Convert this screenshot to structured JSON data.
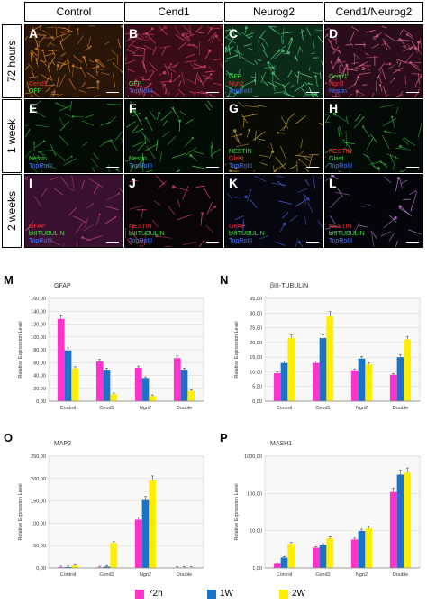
{
  "figure": {
    "columns": [
      "Control",
      "Cend1",
      "Neurog2",
      "Cend1/Neurog2"
    ],
    "rows": [
      "72 hours",
      "1 week",
      "2 weeks"
    ],
    "panels": [
      {
        "letter": "A",
        "bg": "#2a1608",
        "fiber": "#d98a2a",
        "labels": [
          {
            "text": "Cend1",
            "color": "#ff3030"
          },
          {
            "text": "GFP",
            "color": "#40e040"
          }
        ]
      },
      {
        "letter": "B",
        "bg": "#3a0c18",
        "fiber": "#e04a6a",
        "labels": [
          {
            "text": "GFP",
            "color": "#40e040"
          },
          {
            "text": "TopRoIII",
            "color": "#4a7aff"
          }
        ]
      },
      {
        "letter": "C",
        "bg": "#0c2a18",
        "fiber": "#5ad888",
        "labels": [
          {
            "text": "GFP",
            "color": "#40e040"
          },
          {
            "text": "Ngn2",
            "color": "#ff3030"
          },
          {
            "text": "TopRoIII",
            "color": "#4a7aff"
          }
        ]
      },
      {
        "letter": "D",
        "bg": "#2a0c1a",
        "fiber": "#e06a90",
        "labels": [
          {
            "text": "Cend1",
            "color": "#40e040"
          },
          {
            "text": "Ngn2",
            "color": "#ff3030"
          },
          {
            "text": "Nestin",
            "color": "#4a7aff"
          }
        ]
      },
      {
        "letter": "E",
        "bg": "#040a04",
        "fiber": "#2aa83a",
        "labels": [
          {
            "text": "Nestin",
            "color": "#40e040"
          },
          {
            "text": "TopRoIII",
            "color": "#4a7aff"
          }
        ]
      },
      {
        "letter": "F",
        "bg": "#040c06",
        "fiber": "#3ac24a",
        "labels": [
          {
            "text": "Nestin",
            "color": "#40e040"
          },
          {
            "text": "TopRoIII",
            "color": "#4a7aff"
          }
        ]
      },
      {
        "letter": "G",
        "bg": "#0a0a04",
        "fiber": "#c8a83a",
        "labels": [
          {
            "text": "NESTIN",
            "color": "#40e040"
          },
          {
            "text": "Glast",
            "color": "#ff3030"
          },
          {
            "text": "TopRoIII",
            "color": "#4a7aff"
          }
        ]
      },
      {
        "letter": "H",
        "bg": "#040a06",
        "fiber": "#3ab84a",
        "labels": [
          {
            "text": "NESTIN",
            "color": "#ff3030"
          },
          {
            "text": "Glast",
            "color": "#40e040"
          },
          {
            "text": "TopRoIII",
            "color": "#4a7aff"
          }
        ]
      },
      {
        "letter": "I",
        "bg": "#3a1030",
        "fiber": "#c04a8a",
        "labels": [
          {
            "text": "GFAP",
            "color": "#ff3030"
          },
          {
            "text": "bIIITUBULIN",
            "color": "#40e040"
          },
          {
            "text": "TopRoIII",
            "color": "#4a7aff"
          }
        ]
      },
      {
        "letter": "J",
        "bg": "#080408",
        "fiber": "#d84a6a",
        "labels": [
          {
            "text": "NESTIN",
            "color": "#ff3030"
          },
          {
            "text": "bIIITUBULIN",
            "color": "#40e040"
          },
          {
            "text": "TopRoIII",
            "color": "#4a7aff"
          }
        ]
      },
      {
        "letter": "K",
        "bg": "#060610",
        "fiber": "#4a6ad8",
        "labels": [
          {
            "text": "GFAP",
            "color": "#ff3030"
          },
          {
            "text": "bIIITUBULIN",
            "color": "#40e040"
          },
          {
            "text": "TopRoIII",
            "color": "#4a7aff"
          }
        ]
      },
      {
        "letter": "L",
        "bg": "#04040a",
        "fiber": "#c88ad8",
        "labels": [
          {
            "text": "NESTIN",
            "color": "#ff3030"
          },
          {
            "text": "bIIITUBULIN",
            "color": "#40e040"
          },
          {
            "text": "TopRoIII",
            "color": "#4a7aff"
          }
        ]
      }
    ]
  },
  "legend": [
    {
      "label": "72h",
      "color": "#ff33cc"
    },
    {
      "label": "1W",
      "color": "#1a73c8"
    },
    {
      "label": "2W",
      "color": "#ffee00"
    }
  ],
  "chart_data": [
    {
      "letter": "M",
      "type": "bar",
      "title": "GFAP",
      "ylabel": "Relative Expression Level",
      "scale": "linear",
      "ylim": [
        0,
        160
      ],
      "yticks": [
        "0,00",
        "20,00",
        "40,00",
        "60,00",
        "80,00",
        "100,00",
        "120,00",
        "140,00",
        "160,00"
      ],
      "categories": [
        "Control",
        "Cend1",
        "Ngn2",
        "Double"
      ],
      "series": [
        {
          "name": "72h",
          "values": [
            128,
            62,
            52,
            67
          ]
        },
        {
          "name": "1W",
          "values": [
            79,
            49,
            36,
            49
          ]
        },
        {
          "name": "2W",
          "values": [
            51,
            11,
            8,
            16
          ]
        }
      ]
    },
    {
      "letter": "N",
      "type": "bar",
      "title": "βIII-TUBULIN",
      "ylabel": "Relative Expression Level",
      "scale": "linear",
      "ylim": [
        0,
        35
      ],
      "yticks": [
        "0,00",
        "5,00",
        "10,00",
        "15,00",
        "20,00",
        "25,00",
        "30,00",
        "35,00"
      ],
      "categories": [
        "Control",
        "Cend1",
        "Ngn2",
        "Double"
      ],
      "series": [
        {
          "name": "72h",
          "values": [
            9.5,
            13,
            10.5,
            9
          ]
        },
        {
          "name": "1W",
          "values": [
            13,
            21.5,
            14.5,
            15
          ]
        },
        {
          "name": "2W",
          "values": [
            21.5,
            29,
            12.5,
            21
          ]
        }
      ]
    },
    {
      "letter": "O",
      "type": "bar",
      "title": "MAP2",
      "ylabel": "Relative Expression Level",
      "scale": "linear",
      "ylim": [
        0,
        250
      ],
      "yticks": [
        "0,00",
        "50,00",
        "100,00",
        "150,00",
        "200,00",
        "250,00"
      ],
      "categories": [
        "Control",
        "Cend1",
        "Ngn2",
        "Double"
      ],
      "series": [
        {
          "name": "72h",
          "values": [
            1.5,
            1.5,
            108,
            1
          ]
        },
        {
          "name": "1W",
          "values": [
            2,
            3,
            152,
            1
          ]
        },
        {
          "name": "2W",
          "values": [
            5,
            56,
            196,
            1
          ]
        }
      ]
    },
    {
      "letter": "P",
      "type": "bar",
      "title": "MASH1",
      "ylabel": "Relative Expression Level",
      "scale": "log",
      "ylim": [
        1,
        1000
      ],
      "yticks": [
        "1,00",
        "10,00",
        "100,00",
        "1000,00"
      ],
      "categories": [
        "Control",
        "Cend1",
        "Ngn2",
        "Double"
      ],
      "series": [
        {
          "name": "72h",
          "values": [
            1.3,
            3.5,
            5.8,
            110
          ]
        },
        {
          "name": "1W",
          "values": [
            1.9,
            4.2,
            9.8,
            320
          ]
        },
        {
          "name": "2W",
          "values": [
            4.5,
            6.3,
            11.5,
            360
          ]
        }
      ]
    }
  ]
}
